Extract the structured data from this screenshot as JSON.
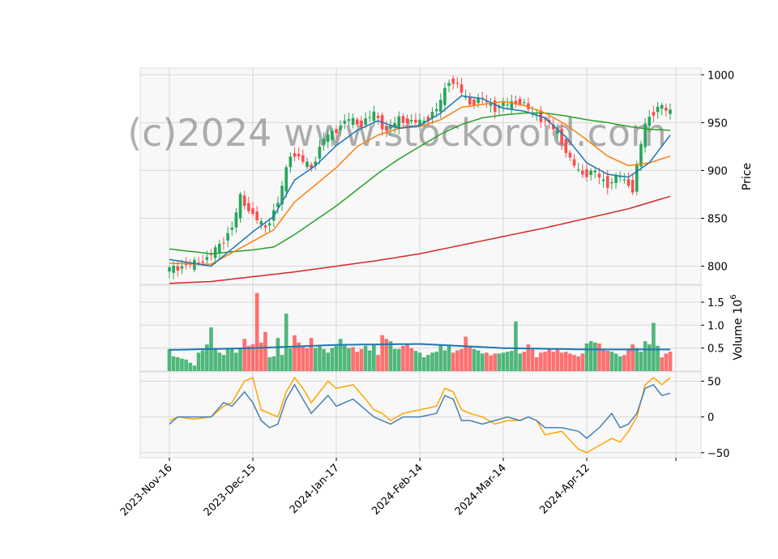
{
  "chart_data": {
    "type": "candlestick",
    "watermark": "(c)2024 www.stockoroid.com",
    "x_tick_labels": [
      "2023-Nov-16",
      "2023-Dec-15",
      "2024-Jan-17",
      "2024-Feb-14",
      "2024-Mar-14",
      "2024-Apr-12"
    ],
    "x_tick_index": [
      0,
      20,
      40,
      60,
      80,
      100
    ],
    "n_sessions": 121,
    "colors": {
      "up": "#26a65b",
      "down": "#ff4d4d",
      "ma_short": "#1f77b4",
      "ma_mid": "#ff7f0e",
      "ma_long": "#2ca02c",
      "ma_200": "#d62728",
      "vol_ma": "#1f77b4",
      "osc_1": "#4682b4",
      "osc_2": "#ffa500"
    },
    "price_panel": {
      "ylabel": "Price",
      "ylim": [
        781,
        1007
      ],
      "yticks": [
        800,
        850,
        900,
        950,
        1000
      ],
      "anchors_index": [
        0,
        3,
        6,
        9,
        12,
        15,
        17,
        20,
        23,
        26,
        29,
        31,
        34,
        37,
        40,
        43,
        46,
        49,
        52,
        55,
        58,
        61,
        64,
        67,
        69,
        72,
        75,
        78,
        81,
        84,
        87,
        90,
        93,
        96,
        99,
        102,
        105,
        108,
        111,
        114,
        117,
        120
      ],
      "anchors_close": [
        797,
        800,
        803,
        808,
        822,
        840,
        872,
        853,
        840,
        866,
        918,
        913,
        903,
        933,
        943,
        954,
        948,
        960,
        941,
        954,
        950,
        952,
        963,
        995,
        988,
        970,
        975,
        965,
        970,
        972,
        960,
        952,
        940,
        910,
        896,
        898,
        885,
        895,
        880,
        950,
        966,
        963
      ],
      "ma_short": {
        "x": [
          0,
          10,
          20,
          25,
          30,
          35,
          40,
          45,
          50,
          55,
          60,
          65,
          70,
          75,
          80,
          85,
          90,
          95,
          100,
          105,
          110,
          115,
          120
        ],
        "y": [
          807,
          800,
          836,
          852,
          890,
          905,
          926,
          942,
          952,
          944,
          947,
          960,
          978,
          975,
          965,
          962,
          955,
          935,
          908,
          896,
          893,
          908,
          937
        ]
      },
      "ma_mid": {
        "x": [
          0,
          10,
          20,
          25,
          30,
          35,
          40,
          45,
          50,
          55,
          60,
          65,
          70,
          75,
          80,
          85,
          90,
          95,
          100,
          105,
          110,
          115,
          120
        ],
        "y": [
          803,
          802,
          826,
          838,
          867,
          885,
          903,
          925,
          937,
          944,
          946,
          953,
          966,
          969,
          972,
          968,
          960,
          948,
          932,
          915,
          905,
          908,
          915
        ]
      },
      "ma_long": {
        "x": [
          0,
          10,
          20,
          25,
          30,
          35,
          40,
          45,
          50,
          55,
          60,
          65,
          70,
          75,
          80,
          85,
          90,
          95,
          100,
          105,
          110,
          115,
          120
        ],
        "y": [
          818,
          813,
          817,
          820,
          833,
          848,
          863,
          880,
          897,
          912,
          925,
          938,
          948,
          955,
          958,
          960,
          960,
          957,
          953,
          950,
          946,
          943,
          942
        ]
      },
      "ma_200": {
        "x": [
          0,
          10,
          20,
          30,
          40,
          50,
          60,
          70,
          80,
          90,
          100,
          110,
          120
        ],
        "y": [
          782,
          784,
          789,
          794,
          800,
          806,
          813,
          822,
          831,
          840,
          850,
          860,
          873
        ]
      }
    },
    "volume_panel": {
      "ylabel": "Volume",
      "ylabel_exponent": "10",
      "ylabel_exponent_power": "6",
      "ylim": [
        0,
        1.87
      ],
      "yticks": [
        0.5,
        1.0,
        1.5
      ],
      "ytick_labels": [
        "0.5",
        "1.0",
        "1.5"
      ],
      "values": [
        0.48,
        0.32,
        0.3,
        0.27,
        0.25,
        0.18,
        0.12,
        0.4,
        0.45,
        0.58,
        0.95,
        0.5,
        0.4,
        0.35,
        0.48,
        0.5,
        0.4,
        0.5,
        0.7,
        0.55,
        0.58,
        1.7,
        0.62,
        0.85,
        0.3,
        0.32,
        0.72,
        0.35,
        1.25,
        0.5,
        0.78,
        0.62,
        0.55,
        0.5,
        0.72,
        0.5,
        0.55,
        0.48,
        0.4,
        0.5,
        0.55,
        0.7,
        0.55,
        0.5,
        0.52,
        0.42,
        0.48,
        0.55,
        0.45,
        0.58,
        0.35,
        0.78,
        0.7,
        0.65,
        0.48,
        0.48,
        0.55,
        0.58,
        0.5,
        0.44,
        0.4,
        0.3,
        0.35,
        0.4,
        0.42,
        0.58,
        0.45,
        0.55,
        0.4,
        0.45,
        0.48,
        0.75,
        0.52,
        0.48,
        0.45,
        0.38,
        0.4,
        0.34,
        0.38,
        0.38,
        0.4,
        0.42,
        0.44,
        1.08,
        0.38,
        0.42,
        0.58,
        0.48,
        0.3,
        0.4,
        0.42,
        0.5,
        0.42,
        0.48,
        0.4,
        0.42,
        0.38,
        0.35,
        0.32,
        0.38,
        0.6,
        0.65,
        0.62,
        0.6,
        0.48,
        0.44,
        0.42,
        0.38,
        0.32,
        0.35,
        0.48,
        0.58,
        0.5,
        0.42,
        0.65,
        0.58,
        1.05,
        0.55,
        0.3,
        0.38,
        0.42
      ],
      "ma": {
        "x": [
          0,
          20,
          40,
          60,
          80,
          100,
          120
        ],
        "y": [
          0.46,
          0.5,
          0.57,
          0.59,
          0.5,
          0.47,
          0.47
        ]
      }
    },
    "osc_panel": {
      "ylim": [
        -57,
        63
      ],
      "yticks": [
        -50,
        0,
        50
      ],
      "ytick_labels": [
        "−50",
        "0",
        "50"
      ],
      "line_1": {
        "x": [
          0,
          2,
          6,
          10,
          13,
          15,
          18,
          20,
          22,
          24,
          26,
          28,
          30,
          32,
          34,
          38,
          40,
          44,
          47,
          49,
          51,
          53,
          56,
          60,
          64,
          66,
          68,
          70,
          72,
          75,
          78,
          81,
          84,
          86,
          88,
          90,
          94,
          98,
          100,
          103,
          106,
          108,
          110,
          112,
          114,
          116,
          118,
          120
        ],
        "y": [
          -10,
          0,
          0,
          0,
          20,
          15,
          35,
          20,
          -5,
          -15,
          -10,
          25,
          45,
          25,
          5,
          30,
          15,
          25,
          10,
          0,
          -5,
          -10,
          0,
          0,
          5,
          30,
          25,
          -5,
          -5,
          -10,
          -5,
          0,
          -5,
          0,
          -5,
          -15,
          -15,
          -20,
          -30,
          -15,
          5,
          -15,
          -10,
          5,
          40,
          45,
          30,
          33
        ]
      },
      "line_2": {
        "x": [
          0,
          2,
          6,
          10,
          13,
          15,
          18,
          20,
          22,
          24,
          26,
          28,
          30,
          32,
          34,
          38,
          40,
          44,
          47,
          49,
          51,
          53,
          56,
          60,
          64,
          66,
          68,
          70,
          72,
          75,
          78,
          81,
          84,
          86,
          88,
          90,
          94,
          98,
          100,
          103,
          106,
          108,
          110,
          112,
          114,
          116,
          118,
          120
        ],
        "y": [
          -5,
          0,
          -3,
          0,
          15,
          20,
          50,
          55,
          10,
          5,
          0,
          35,
          55,
          40,
          20,
          50,
          40,
          45,
          25,
          10,
          5,
          -5,
          5,
          10,
          15,
          40,
          35,
          10,
          5,
          0,
          -10,
          -5,
          -5,
          0,
          -5,
          -25,
          -20,
          -45,
          -50,
          -40,
          -30,
          -35,
          -20,
          0,
          45,
          55,
          45,
          55
        ]
      }
    }
  }
}
